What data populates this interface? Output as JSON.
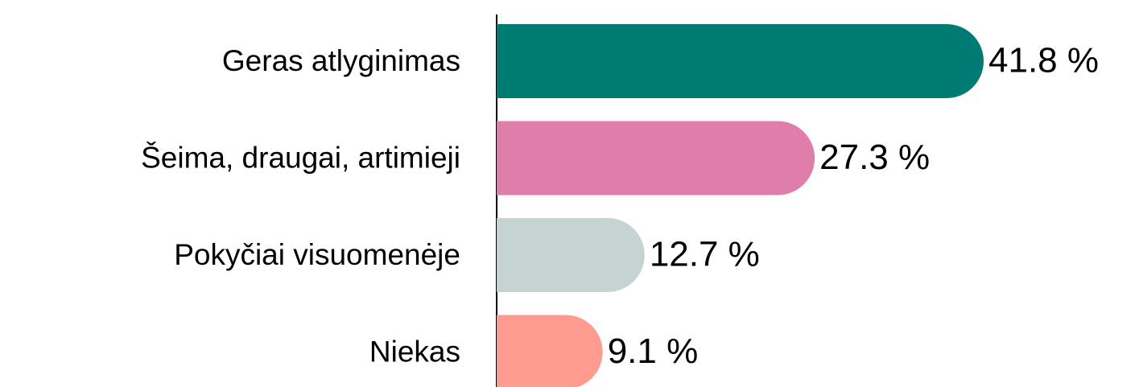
{
  "chart_data": {
    "type": "bar",
    "orientation": "horizontal",
    "categories": [
      "Geras atlyginimas",
      "Šeima, draugai, artimieji",
      "Pokyčiai visuomenėje",
      "Niekas"
    ],
    "values": [
      41.8,
      27.3,
      12.7,
      9.1
    ],
    "value_labels": [
      "41.8 %",
      "27.3 %",
      "12.7 %",
      "9.1 %"
    ],
    "colors": [
      "#007b73",
      "#df7eab",
      "#c5d3d3",
      "#ff9b8f"
    ]
  }
}
